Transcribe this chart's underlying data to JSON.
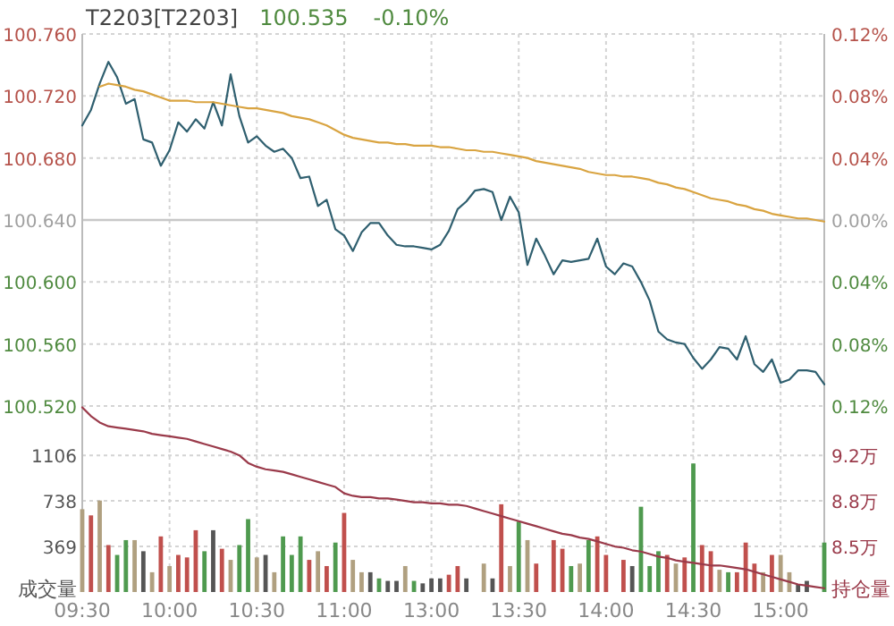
{
  "chart_data": [
    {
      "type": "line",
      "title": "T2203[T2203]",
      "subtitle": "100.535",
      "annotations": [
        "-0.10%"
      ],
      "categories": [
        null,
        null,
        null,
        null,
        null,
        null,
        null,
        null,
        null,
        null,
        null,
        null,
        null,
        null,
        null,
        null,
        null,
        null,
        null,
        null,
        null,
        null,
        null,
        null,
        null,
        null,
        null,
        null,
        null,
        null,
        null,
        null,
        null,
        null,
        null,
        null,
        null,
        null,
        null,
        null,
        null,
        null,
        null,
        null,
        null,
        null,
        null,
        null,
        null,
        null,
        null,
        null,
        null,
        null,
        null,
        null,
        null,
        null,
        null,
        null,
        null,
        null,
        null,
        null,
        null,
        null,
        null,
        null,
        null,
        null,
        null,
        null,
        null,
        null,
        null,
        null,
        null,
        null,
        null,
        null,
        null,
        null,
        null,
        null,
        null,
        null
      ],
      "series": [
        {
          "color": "#2f5f6f",
          "values": [
            100.701,
            100.711,
            100.728,
            100.742,
            100.732,
            100.715,
            100.718,
            100.692,
            100.69,
            100.675,
            100.685,
            100.703,
            100.697,
            100.705,
            100.699,
            100.716,
            100.701,
            100.734,
            100.707,
            100.69,
            100.694,
            100.688,
            100.684,
            100.686,
            100.68,
            100.667,
            100.668,
            100.649,
            100.653,
            100.634,
            100.63,
            100.62,
            100.632,
            100.638,
            100.638,
            100.63,
            100.624,
            100.623,
            100.623,
            100.622,
            100.621,
            100.624,
            100.633,
            100.647,
            100.652,
            100.659,
            100.66,
            100.658,
            100.64,
            100.655,
            100.645,
            100.611,
            100.628,
            100.617,
            100.605,
            100.614,
            100.613,
            100.614,
            100.615,
            100.628,
            100.61,
            100.605,
            100.612,
            100.61,
            100.6,
            100.588,
            100.568,
            100.563,
            100.561,
            100.56,
            100.551,
            100.544,
            100.55,
            100.558,
            100.557,
            100.55,
            100.565,
            100.547,
            100.542,
            100.55,
            100.535,
            100.537,
            100.543,
            100.543,
            100.542,
            100.534
          ]
        },
        {
          "color": "#d9a441",
          "values": [
            null,
            null,
            100.726,
            100.728,
            100.727,
            100.726,
            100.724,
            100.723,
            100.721,
            100.719,
            100.717,
            100.717,
            100.717,
            100.716,
            100.716,
            100.716,
            100.715,
            100.714,
            100.713,
            100.712,
            100.712,
            100.711,
            100.71,
            100.709,
            100.707,
            100.706,
            100.705,
            100.703,
            100.701,
            100.698,
            100.695,
            100.693,
            100.692,
            100.691,
            100.69,
            100.69,
            100.689,
            100.689,
            100.688,
            100.688,
            100.688,
            100.687,
            100.687,
            100.686,
            100.685,
            100.685,
            100.684,
            100.684,
            100.683,
            100.682,
            100.681,
            100.68,
            100.678,
            100.677,
            100.676,
            100.675,
            100.674,
            100.673,
            100.671,
            100.67,
            100.669,
            100.669,
            100.668,
            100.668,
            100.667,
            100.666,
            100.664,
            100.663,
            100.661,
            100.66,
            100.658,
            100.656,
            100.654,
            100.653,
            100.652,
            100.65,
            100.649,
            100.647,
            100.646,
            100.644,
            100.643,
            100.642,
            100.641,
            100.641,
            100.64,
            100.639
          ]
        }
      ],
      "ylim": [
        100.52,
        100.76
      ],
      "yticks": [
        {
          "value": 100.52,
          "label": "100.520"
        },
        {
          "value": 100.56,
          "label": "100.560"
        },
        {
          "value": 100.6,
          "label": "100.600"
        },
        {
          "value": 100.64,
          "label": "100.640"
        },
        {
          "value": 100.68,
          "label": "100.680"
        },
        {
          "value": 100.72,
          "label": "100.720"
        },
        {
          "value": 100.76,
          "label": "100.760"
        }
      ],
      "y2lim": [
        -0.12,
        0.12
      ],
      "y2ticks": [
        {
          "value": -0.12,
          "label": "0.12%"
        },
        {
          "value": -0.08,
          "label": "0.08%"
        },
        {
          "value": -0.04,
          "label": "0.04%"
        },
        {
          "value": 0,
          "label": "0.00%"
        },
        {
          "value": 0.04,
          "label": "0.04%"
        },
        {
          "value": 0.08,
          "label": "0.08%"
        },
        {
          "value": 0.12,
          "label": "0.12%"
        }
      ],
      "ref_lines": [
        {
          "axis": "y",
          "value": 100.64,
          "color": "#c8c8c8"
        }
      ],
      "grid": true,
      "tick_labels": "y"
    },
    {
      "type": "bar",
      "ylabel": "成交量",
      "y2label": "持仓量",
      "categories": [
        "09:30",
        null,
        null,
        null,
        null,
        null,
        null,
        null,
        null,
        null,
        "10:00",
        null,
        null,
        null,
        null,
        null,
        null,
        null,
        null,
        null,
        "10:30",
        null,
        null,
        null,
        null,
        null,
        null,
        null,
        null,
        null,
        "11:00",
        null,
        null,
        null,
        null,
        null,
        null,
        null,
        null,
        null,
        "13:00",
        null,
        null,
        null,
        null,
        null,
        null,
        null,
        null,
        null,
        "13:30",
        null,
        null,
        null,
        null,
        null,
        null,
        null,
        null,
        null,
        "14:00",
        null,
        null,
        null,
        null,
        null,
        null,
        null,
        null,
        null,
        "14:30",
        null,
        null,
        null,
        null,
        null,
        null,
        null,
        null,
        null,
        "15:00",
        null,
        null,
        null,
        null,
        null
      ],
      "series": [
        {
          "type": "bar",
          "values": [
            670,
            620,
            740,
            380,
            300,
            420,
            420,
            330,
            160,
            450,
            210,
            300,
            280,
            500,
            330,
            500,
            350,
            260,
            380,
            590,
            280,
            300,
            160,
            450,
            300,
            450,
            260,
            330,
            210,
            400,
            640,
            260,
            160,
            160,
            110,
            90,
            90,
            210,
            90,
            70,
            110,
            110,
            140,
            210,
            110,
            null,
            230,
            110,
            710,
            210,
            570,
            420,
            230,
            null,
            420,
            350,
            210,
            230,
            420,
            450,
            300,
            null,
            260,
            210,
            690,
            210,
            330,
            300,
            230,
            280,
            1040,
            380,
            330,
            180,
            160,
            160,
            400,
            230,
            160,
            300,
            300,
            160,
            60,
            90,
            null,
            400
          ],
          "colors": [
            "#b0a080",
            "#c0504d",
            "#b0a080",
            "#c0504d",
            "#4f9a4f",
            "#4f9a4f",
            "#b0a080",
            "#555555",
            "#b0a080",
            "#c0504d",
            "#b0a080",
            "#c0504d",
            "#c0504d",
            "#c0504d",
            "#4f9a4f",
            "#555555",
            "#c0504d",
            "#b0a080",
            "#4f9a4f",
            "#4f9a4f",
            "#b0a080",
            "#555555",
            "#b0a080",
            "#4f9a4f",
            "#4f9a4f",
            "#4f9a4f",
            "#c0504d",
            "#b0a080",
            "#c0504d",
            "#4f9a4f",
            "#c0504d",
            "#b0a080",
            "#b0a080",
            "#555555",
            "#4f9a4f",
            "#555555",
            "#555555",
            "#b0a080",
            "#4f9a4f",
            "#555555",
            "#555555",
            "#555555",
            "#c0504d",
            "#c0504d",
            "#555555",
            null,
            "#b0a080",
            "#555555",
            "#c0504d",
            "#b0a080",
            "#4f9a4f",
            "#b0a080",
            "#c0504d",
            null,
            "#c0504d",
            "#c0504d",
            "#4f9a4f",
            "#b0a080",
            "#4f9a4f",
            "#c0504d",
            "#c0504d",
            null,
            "#c0504d",
            "#555555",
            "#4f9a4f",
            "#4f9a4f",
            "#4f9a4f",
            "#c0504d",
            "#b0a080",
            "#c0504d",
            "#4f9a4f",
            "#c0504d",
            "#c0504d",
            "#b0a080",
            "#4f9a4f",
            "#c0504d",
            "#c0504d",
            "#c0504d",
            "#b0a080",
            "#c0504d",
            "#b0a080",
            "#b0a080",
            "#555555",
            "#555555",
            null,
            "#4f9a4f"
          ]
        },
        {
          "type": "line",
          "axis": "y2",
          "color": "#9a3a4a",
          "values": [
            9.58,
            9.51,
            9.46,
            9.43,
            9.42,
            9.41,
            9.4,
            9.39,
            9.37,
            9.36,
            9.35,
            9.34,
            9.33,
            9.31,
            9.29,
            9.27,
            9.25,
            9.23,
            9.2,
            9.14,
            9.11,
            9.09,
            9.08,
            9.07,
            9.05,
            9.03,
            9.01,
            8.99,
            8.97,
            8.95,
            8.9,
            8.88,
            8.87,
            8.87,
            8.86,
            8.86,
            8.85,
            8.84,
            8.83,
            8.83,
            8.82,
            8.82,
            8.81,
            8.81,
            8.8,
            8.78,
            8.76,
            8.74,
            8.72,
            8.7,
            8.68,
            8.66,
            8.64,
            8.62,
            8.6,
            8.58,
            8.57,
            8.55,
            8.54,
            8.52,
            8.5,
            8.48,
            8.47,
            8.45,
            8.44,
            8.42,
            8.4,
            8.39,
            8.37,
            8.36,
            8.35,
            8.34,
            8.33,
            8.33,
            8.32,
            8.31,
            8.3,
            8.28,
            8.26,
            8.24,
            8.22,
            8.2,
            8.18,
            8.17,
            8.16,
            8.15
          ]
        }
      ],
      "ylim": [
        0,
        1505
      ],
      "yticks": [
        369,
        738,
        1106
      ],
      "y2lim": [
        8.12,
        9.59
      ],
      "y2ticks": [
        {
          "value": 8.48,
          "label": "8.5万"
        },
        {
          "value": 8.84,
          "label": "8.8万"
        },
        {
          "value": 9.2,
          "label": "9.2万"
        }
      ],
      "grid": true
    }
  ]
}
